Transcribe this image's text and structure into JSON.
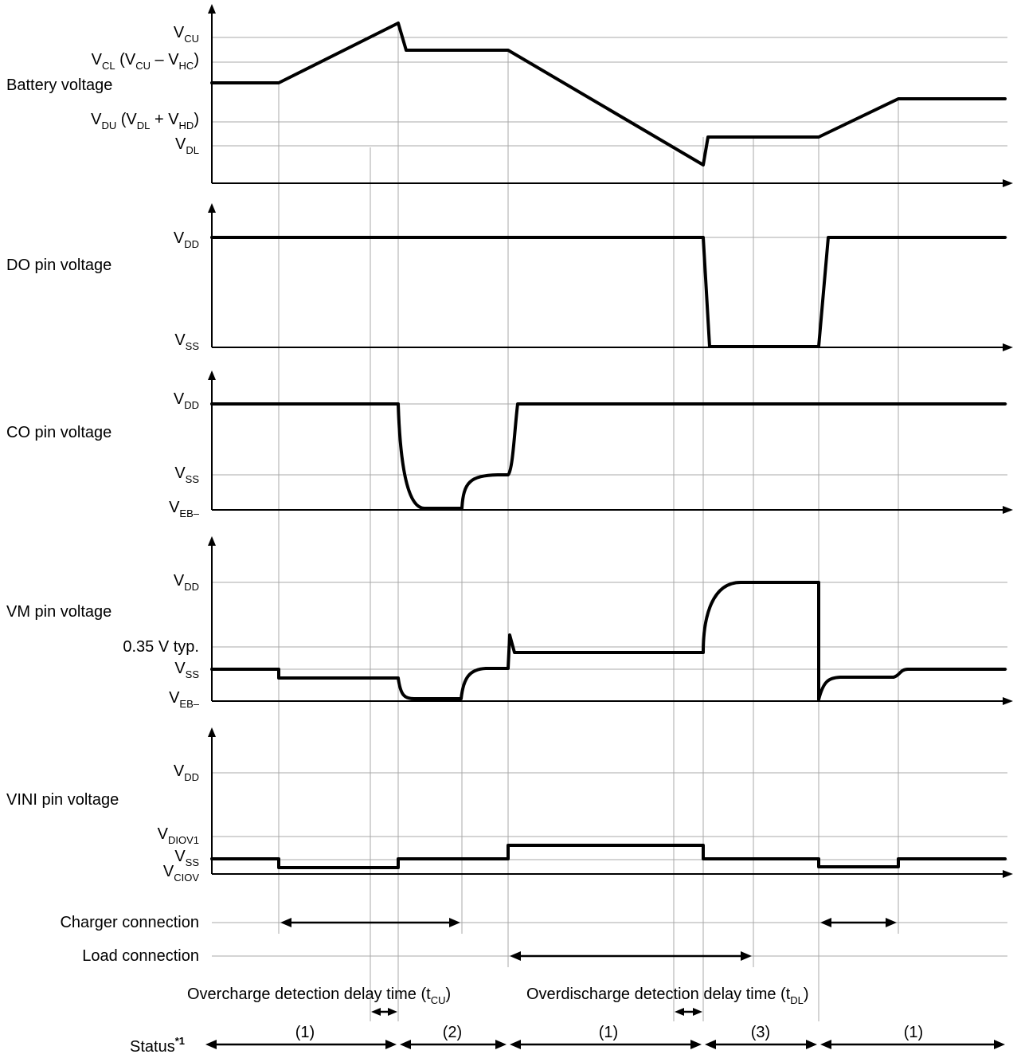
{
  "panels": [
    {
      "title": "Battery voltage",
      "levels": [
        {
          "main": "V",
          "sub": "CU"
        },
        {
          "main": "V",
          "sub": "CL",
          "rest": [
            " (V",
            "CU",
            " – V",
            "HC",
            ")"
          ]
        },
        {
          "main": "V",
          "sub": "DU",
          "rest": [
            " (V",
            "DL",
            " + V",
            "HD",
            ")"
          ]
        },
        {
          "main": "V",
          "sub": "DL"
        }
      ]
    },
    {
      "title": "DO pin voltage",
      "levels": [
        {
          "main": "V",
          "sub": "DD"
        },
        {
          "main": "V",
          "sub": "SS"
        }
      ]
    },
    {
      "title": "CO pin voltage",
      "levels": [
        {
          "main": "V",
          "sub": "DD"
        },
        {
          "main": "V",
          "sub": "SS"
        },
        {
          "main": "V",
          "sub": "EB–"
        }
      ]
    },
    {
      "title": "VM pin voltage",
      "levels": [
        {
          "main": "V",
          "sub": "DD"
        },
        {
          "main": "0.35 V typ.",
          "sub": ""
        },
        {
          "main": "V",
          "sub": "SS"
        },
        {
          "main": "V",
          "sub": "EB–"
        }
      ]
    },
    {
      "title": "VINI pin voltage",
      "levels": [
        {
          "main": "V",
          "sub": "DD"
        },
        {
          "main": "V",
          "sub": "DIOV1"
        },
        {
          "main": "V",
          "sub": "SS"
        },
        {
          "main": "V",
          "sub": "CIOV"
        }
      ]
    }
  ],
  "connections": {
    "charger": "Charger connection",
    "load": "Load connection"
  },
  "delays": {
    "overcharge": {
      "text": "Overcharge detection delay time (t",
      "sub": "CU",
      "end": ")"
    },
    "overdischarge": {
      "text": "Overdischarge detection delay time (t",
      "sub": "DL",
      "end": ")"
    }
  },
  "status": {
    "label": "Status",
    "footnote": "*1",
    "segments": [
      "(1)",
      "(2)",
      "(1)",
      "(3)",
      "(1)"
    ]
  }
}
